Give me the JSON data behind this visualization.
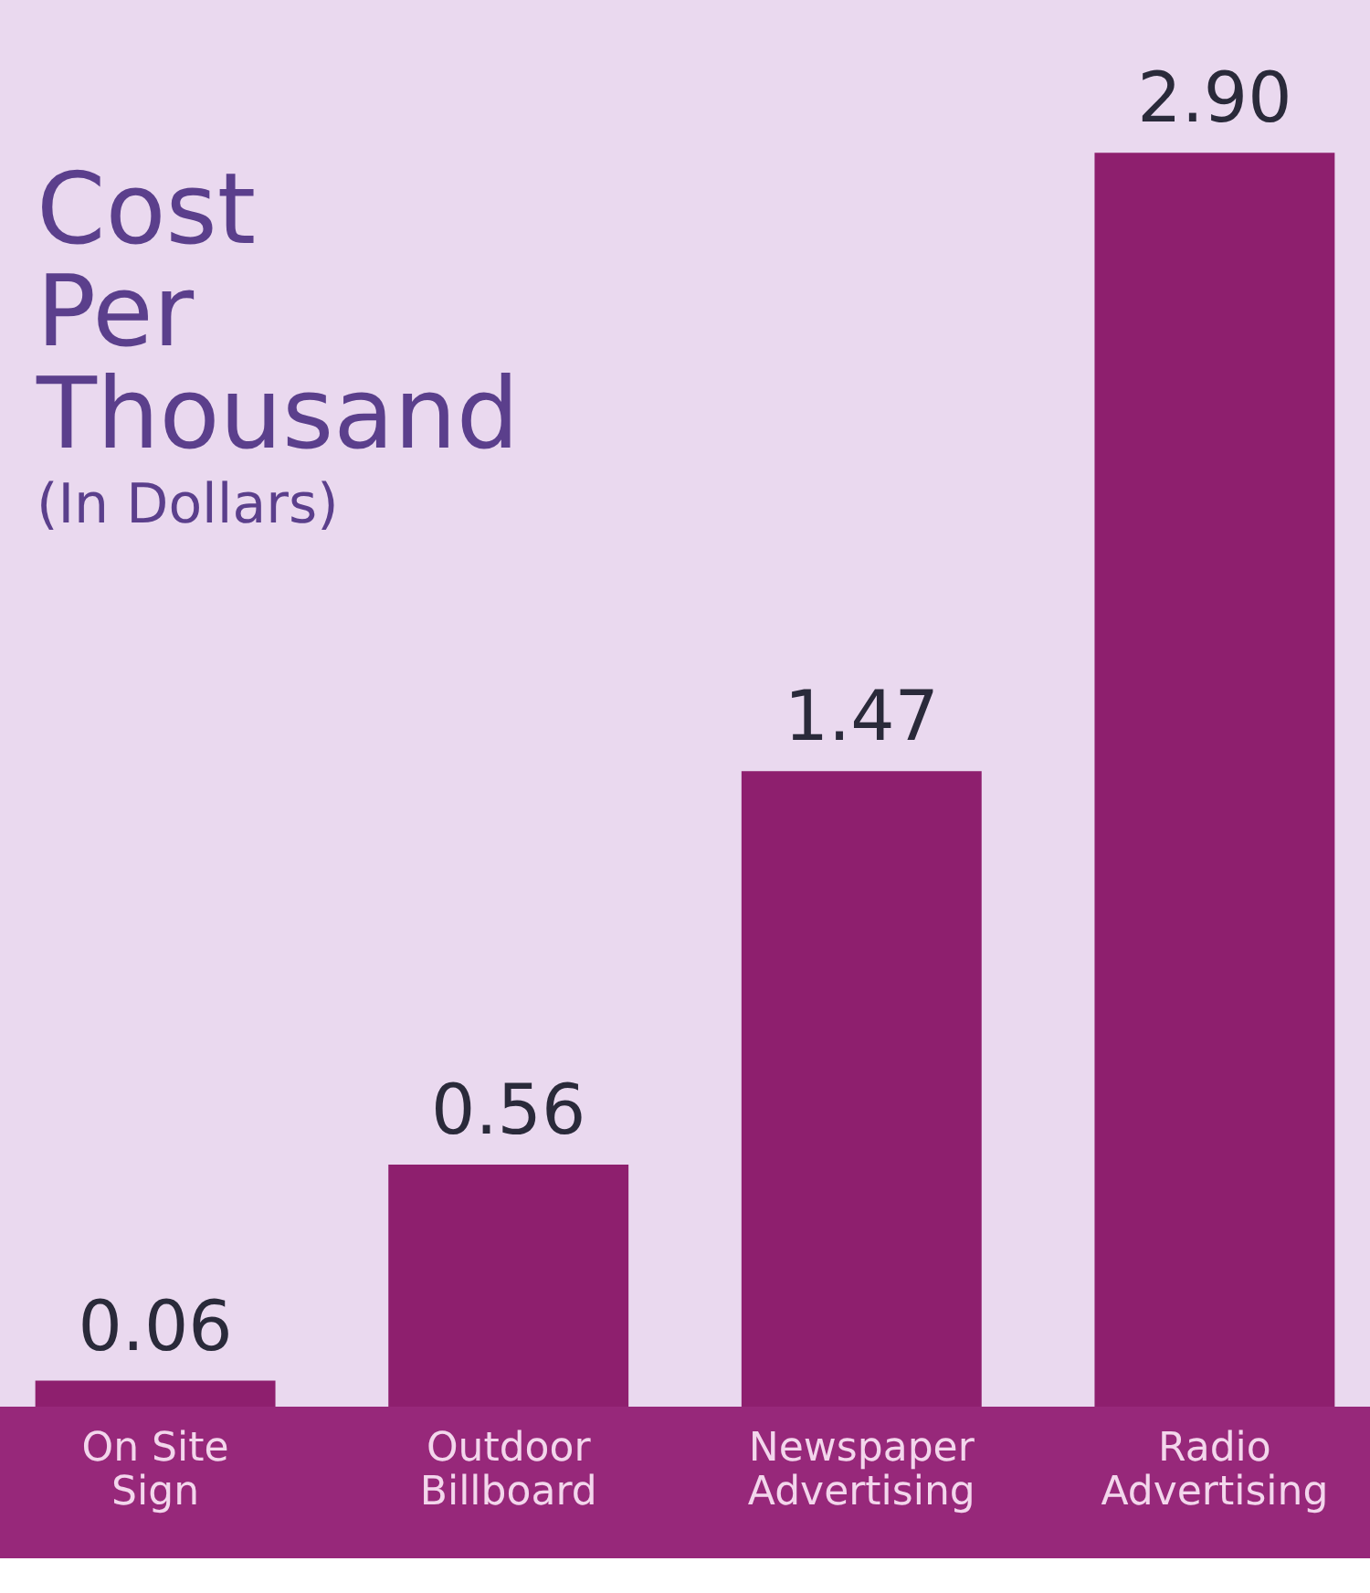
{
  "chart_data": {
    "type": "bar",
    "title": "Cost Per Thousand",
    "subtitle": "(In Dollars)",
    "categories": [
      "On Site Sign",
      "Outdoor Billboard",
      "Newspaper Advertising",
      "Radio Advertising"
    ],
    "values": [
      0.06,
      0.56,
      1.47,
      2.9
    ],
    "value_labels": [
      "0.06",
      "0.56",
      "1.47",
      "2.90"
    ],
    "color": "#8e1f6e",
    "grid": false,
    "tick_labels": "x"
  }
}
